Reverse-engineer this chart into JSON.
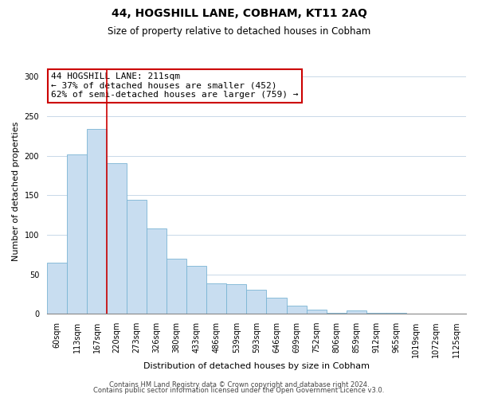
{
  "title": "44, HOGSHILL LANE, COBHAM, KT11 2AQ",
  "subtitle": "Size of property relative to detached houses in Cobham",
  "xlabel": "Distribution of detached houses by size in Cobham",
  "ylabel": "Number of detached properties",
  "bin_labels": [
    "60sqm",
    "113sqm",
    "167sqm",
    "220sqm",
    "273sqm",
    "326sqm",
    "380sqm",
    "433sqm",
    "486sqm",
    "539sqm",
    "593sqm",
    "646sqm",
    "699sqm",
    "752sqm",
    "806sqm",
    "859sqm",
    "912sqm",
    "965sqm",
    "1019sqm",
    "1072sqm",
    "1125sqm"
  ],
  "bar_heights": [
    65,
    202,
    234,
    191,
    144,
    108,
    70,
    61,
    39,
    37,
    30,
    20,
    10,
    5,
    1,
    4,
    1,
    1,
    0,
    0,
    0
  ],
  "bar_color": "#c8ddf0",
  "bar_edge_color": "#7ab4d4",
  "vline_x_idx": 2.5,
  "vline_color": "#cc0000",
  "ylim": [
    0,
    310
  ],
  "yticks": [
    0,
    50,
    100,
    150,
    200,
    250,
    300
  ],
  "annotation_text": "44 HOGSHILL LANE: 211sqm\n← 37% of detached houses are smaller (452)\n62% of semi-detached houses are larger (759) →",
  "annotation_box_color": "#ffffff",
  "annotation_box_edge": "#cc0000",
  "footer_line1": "Contains HM Land Registry data © Crown copyright and database right 2024.",
  "footer_line2": "Contains public sector information licensed under the Open Government Licence v3.0.",
  "background_color": "#ffffff",
  "grid_color": "#c8d8e8",
  "title_fontsize": 10,
  "subtitle_fontsize": 8.5,
  "axis_label_fontsize": 8,
  "tick_fontsize": 7,
  "annotation_fontsize": 8,
  "footer_fontsize": 6
}
